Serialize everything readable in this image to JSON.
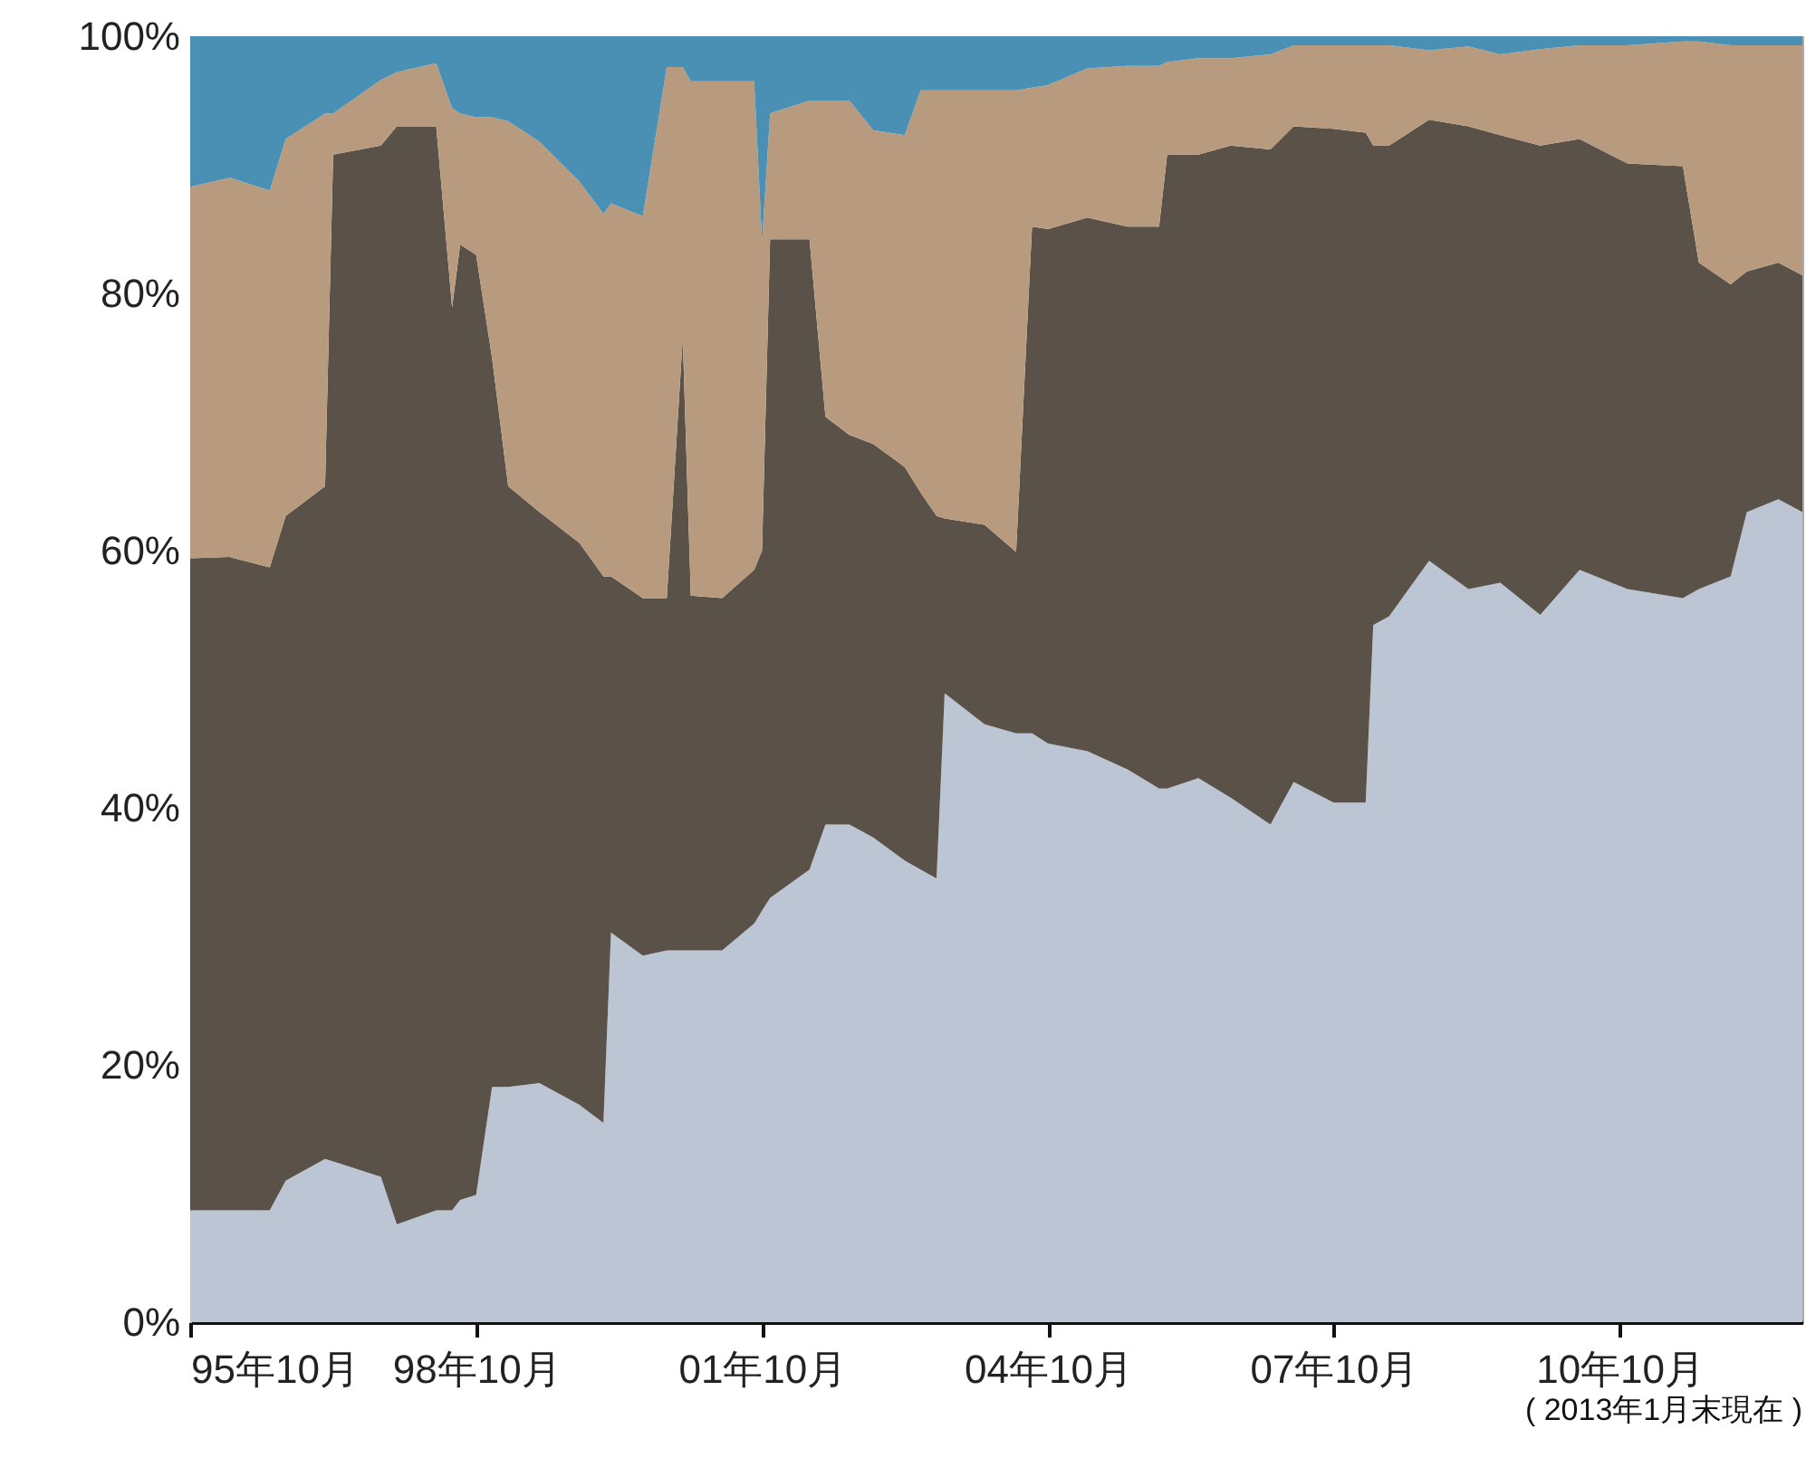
{
  "chart_data": {
    "type": "area",
    "stacked": true,
    "x": [
      "1995-10",
      "1996-03",
      "1996-08",
      "1996-10",
      "1997-03",
      "1997-04",
      "1997-10",
      "1997-12",
      "1998-05",
      "1998-07",
      "1998-08",
      "1998-10",
      "1998-12",
      "1999-02",
      "1999-06",
      "1999-11",
      "2000-02",
      "2000-03",
      "2000-07",
      "2000-10",
      "2000-12",
      "2001-01",
      "2001-05",
      "2001-09",
      "2001-10",
      "2001-11",
      "2002-04",
      "2002-06",
      "2002-09",
      "2002-12",
      "2003-04",
      "2003-06",
      "2003-08",
      "2003-09",
      "2004-02",
      "2004-06",
      "2004-08",
      "2004-10",
      "2005-03",
      "2005-08",
      "2005-12",
      "2006-01",
      "2006-05",
      "2006-09",
      "2007-02",
      "2007-05",
      "2007-10",
      "2008-02",
      "2008-03",
      "2008-05",
      "2008-10",
      "2009-03",
      "2009-07",
      "2009-12",
      "2010-05",
      "2010-11",
      "2011-06",
      "2011-08",
      "2011-12",
      "2012-02",
      "2012-06",
      "2012-09"
    ],
    "series": [
      {
        "color": "#bcc5d4",
        "values": [
          8.7,
          8.7,
          8.7,
          11.0,
          12.7,
          12.5,
          11.3,
          7.6,
          8.7,
          8.7,
          9.5,
          9.9,
          18.3,
          18.3,
          18.6,
          16.9,
          15.5,
          30.3,
          28.5,
          28.9,
          28.9,
          28.9,
          28.9,
          31.0,
          32.0,
          33.0,
          35.2,
          38.7,
          38.7,
          37.7,
          35.9,
          35.2,
          34.5,
          48.9,
          46.5,
          45.8,
          45.8,
          45.0,
          44.4,
          43.0,
          41.5,
          41.5,
          42.3,
          40.8,
          38.7,
          42.0,
          40.4,
          40.4,
          54.2,
          54.9,
          59.2,
          57.0,
          57.5,
          55.0,
          58.5,
          57.0,
          56.3,
          57.0,
          58.0,
          63.0,
          64.0,
          63.0
        ]
      },
      {
        "color": "#5a5249",
        "values": [
          50.7,
          50.8,
          50.0,
          51.7,
          52.3,
          78.3,
          80.2,
          85.4,
          84.3,
          70.2,
          74.3,
          73.1,
          56.7,
          46.7,
          44.4,
          43.7,
          42.5,
          27.7,
          27.8,
          27.4,
          47.6,
          27.6,
          27.4,
          27.5,
          28.0,
          51.2,
          49.0,
          31.7,
          30.3,
          30.6,
          30.6,
          29.3,
          28.2,
          13.6,
          15.5,
          14.1,
          39.4,
          40.0,
          41.5,
          42.2,
          43.7,
          49.3,
          48.5,
          50.7,
          52.5,
          51.0,
          52.4,
          52.1,
          37.3,
          36.6,
          34.3,
          36.0,
          34.8,
          36.5,
          33.5,
          33.1,
          33.6,
          25.4,
          22.7,
          18.7,
          18.4,
          18.4
        ]
      },
      {
        "color": "#b89b7e",
        "values": [
          28.9,
          29.5,
          29.3,
          29.3,
          29.0,
          3.2,
          5.1,
          4.2,
          4.9,
          15.5,
          10.2,
          10.7,
          18.7,
          28.4,
          28.8,
          28.1,
          28.2,
          29.0,
          29.7,
          41.3,
          21.1,
          40.0,
          40.2,
          38.0,
          24.0,
          9.8,
          10.8,
          24.6,
          26.0,
          24.4,
          25.8,
          31.3,
          33.1,
          33.3,
          33.8,
          35.9,
          10.8,
          11.2,
          11.6,
          12.5,
          12.5,
          7.2,
          7.5,
          6.8,
          7.4,
          6.3,
          6.5,
          6.8,
          7.8,
          7.8,
          5.4,
          6.2,
          6.3,
          7.5,
          7.3,
          9.2,
          9.7,
          17.2,
          18.6,
          17.6,
          16.9,
          17.9
        ]
      },
      {
        "color": "#4a90b4",
        "values": [
          11.7,
          11.0,
          12.0,
          8.0,
          6.0,
          6.0,
          3.4,
          2.8,
          2.1,
          5.6,
          6.0,
          6.3,
          6.3,
          6.6,
          8.2,
          11.3,
          13.8,
          13.0,
          14.0,
          2.4,
          2.4,
          3.5,
          3.5,
          3.5,
          16.0,
          6.0,
          5.0,
          5.0,
          5.0,
          7.3,
          7.7,
          4.2,
          4.2,
          4.2,
          4.2,
          4.2,
          4.0,
          3.8,
          2.5,
          2.3,
          2.3,
          2.0,
          1.7,
          1.7,
          1.4,
          0.7,
          0.7,
          0.7,
          0.7,
          0.7,
          1.1,
          0.8,
          1.4,
          1.0,
          0.7,
          0.7,
          0.4,
          0.4,
          0.7,
          0.7,
          0.7,
          0.7
        ]
      }
    ],
    "xlim": [
      "1995-10",
      "2012-09"
    ],
    "xticks": [
      {
        "value": "1995-10",
        "label": "95年10月"
      },
      {
        "value": "1998-10",
        "label": "98年10月"
      },
      {
        "value": "2001-10",
        "label": "01年10月"
      },
      {
        "value": "2004-10",
        "label": "04年10月"
      },
      {
        "value": "2007-10",
        "label": "07年10月"
      },
      {
        "value": "2010-10",
        "label": "10年10月"
      }
    ],
    "ylim": [
      0,
      100
    ],
    "yticks": [
      {
        "value": 0,
        "label": "0%"
      },
      {
        "value": 20,
        "label": "20%"
      },
      {
        "value": 40,
        "label": "40%"
      },
      {
        "value": 60,
        "label": "60%"
      },
      {
        "value": 80,
        "label": "80%"
      },
      {
        "value": 100,
        "label": "100%"
      }
    ],
    "annotations": [
      "( 2013年1月末現在 )"
    ]
  }
}
